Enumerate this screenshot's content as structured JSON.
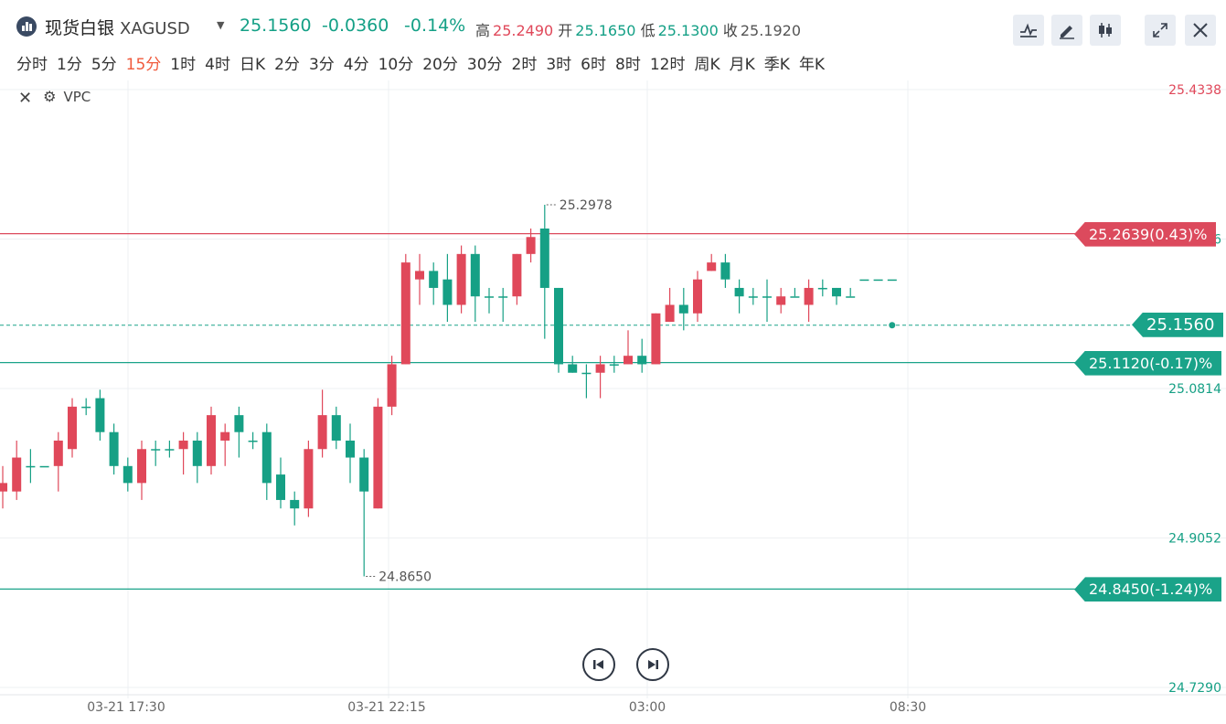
{
  "header": {
    "name": "现货白银",
    "symbol": "XAGUSD",
    "price": "25.1560",
    "change": "-0.0360",
    "change_pct": "-0.14%",
    "high_label": "高",
    "high": "25.2490",
    "open_label": "开",
    "open": "25.1650",
    "low_label": "低",
    "low": "25.1300",
    "close_label": "收",
    "close": "25.1920",
    "colors": {
      "up": "#e0485a",
      "down": "#16a085"
    }
  },
  "toolbar": {
    "icons": [
      "line-chart-icon",
      "pen-icon",
      "candlestick-icon",
      "expand-icon",
      "close-icon"
    ]
  },
  "periods": [
    "分时",
    "1分",
    "5分",
    "15分",
    "1时",
    "4时",
    "日K",
    "2分",
    "3分",
    "4分",
    "10分",
    "20分",
    "30分",
    "2时",
    "3时",
    "6时",
    "8时",
    "12时",
    "周K",
    "月K",
    "季K",
    "年K"
  ],
  "active_period": "15分",
  "indicator": {
    "name": "VPC"
  },
  "chart_data": {
    "type": "candlestick",
    "y_ticks": [
      "25.4338",
      "25.2576",
      "25.0814",
      "24.9052",
      "24.7290"
    ],
    "ylim": [
      24.729,
      25.4338
    ],
    "x_ticks": [
      "03-21 17:30",
      "03-21 22:15",
      "03:00",
      "08:30"
    ],
    "annotations": {
      "max": "25.2978",
      "min": "24.8650"
    },
    "price_lines": [
      {
        "label": "25.2639(0.43)%",
        "value": 25.2639,
        "color": "#dc4a5d"
      },
      {
        "label": "25.1120(-0.17)%",
        "value": 25.112,
        "color": "#1aa389"
      },
      {
        "label": "24.8450(-1.24)%",
        "value": 24.845,
        "color": "#1aa389"
      }
    ],
    "current": {
      "label": "25.1560",
      "value": 25.156
    },
    "candles": [
      [
        24.96,
        24.97,
        24.94,
        24.99
      ],
      [
        24.96,
        25.0,
        24.95,
        25.02
      ],
      [
        24.99,
        24.99,
        24.97,
        25.01
      ],
      [
        24.99,
        24.99,
        24.99,
        24.99
      ],
      [
        24.99,
        25.02,
        24.96,
        25.03
      ],
      [
        25.01,
        25.06,
        25.0,
        25.07
      ],
      [
        25.06,
        25.06,
        25.05,
        25.07
      ],
      [
        25.07,
        25.03,
        25.02,
        25.08
      ],
      [
        25.03,
        24.99,
        24.98,
        25.04
      ],
      [
        24.99,
        24.97,
        24.96,
        25.0
      ],
      [
        24.97,
        25.01,
        24.95,
        25.02
      ],
      [
        25.01,
        25.01,
        24.99,
        25.02
      ],
      [
        25.01,
        25.01,
        25.0,
        25.02
      ],
      [
        25.01,
        25.02,
        24.98,
        25.03
      ],
      [
        25.02,
        24.99,
        24.97,
        25.03
      ],
      [
        24.99,
        25.05,
        24.98,
        25.06
      ],
      [
        25.02,
        25.03,
        24.99,
        25.04
      ],
      [
        25.05,
        25.03,
        25.0,
        25.06
      ],
      [
        25.02,
        25.02,
        25.01,
        25.03
      ],
      [
        25.03,
        24.97,
        24.95,
        25.04
      ],
      [
        24.98,
        24.95,
        24.94,
        25.0
      ],
      [
        24.95,
        24.94,
        24.92,
        24.96
      ],
      [
        24.94,
        25.01,
        24.93,
        25.02
      ],
      [
        25.01,
        25.05,
        25.0,
        25.08
      ],
      [
        25.05,
        25.02,
        25.01,
        25.06
      ],
      [
        25.02,
        25.0,
        24.97,
        25.04
      ],
      [
        25.0,
        24.96,
        24.86,
        25.01
      ],
      [
        24.94,
        25.06,
        24.94,
        25.07
      ],
      [
        25.06,
        25.11,
        25.05,
        25.12
      ],
      [
        25.11,
        25.23,
        25.11,
        25.24
      ],
      [
        25.21,
        25.22,
        25.18,
        25.24
      ],
      [
        25.22,
        25.2,
        25.18,
        25.23
      ],
      [
        25.21,
        25.18,
        25.16,
        25.24
      ],
      [
        25.18,
        25.24,
        25.17,
        25.25
      ],
      [
        25.24,
        25.19,
        25.16,
        25.25
      ],
      [
        25.19,
        25.19,
        25.17,
        25.2
      ],
      [
        25.19,
        25.19,
        25.16,
        25.2
      ],
      [
        25.19,
        25.24,
        25.18,
        25.24
      ],
      [
        25.24,
        25.26,
        25.23,
        25.27
      ],
      [
        25.27,
        25.2,
        25.14,
        25.298
      ],
      [
        25.2,
        25.11,
        25.1,
        25.2
      ],
      [
        25.11,
        25.1,
        25.1,
        25.12
      ],
      [
        25.1,
        25.1,
        25.07,
        25.11
      ],
      [
        25.1,
        25.11,
        25.07,
        25.12
      ],
      [
        25.11,
        25.11,
        25.1,
        25.12
      ],
      [
        25.11,
        25.12,
        25.11,
        25.15
      ],
      [
        25.12,
        25.11,
        25.1,
        25.14
      ],
      [
        25.11,
        25.17,
        25.11,
        25.17
      ],
      [
        25.16,
        25.18,
        25.16,
        25.2
      ],
      [
        25.18,
        25.17,
        25.15,
        25.2
      ],
      [
        25.17,
        25.21,
        25.16,
        25.22
      ],
      [
        25.22,
        25.23,
        25.22,
        25.24
      ],
      [
        25.23,
        25.21,
        25.2,
        25.24
      ],
      [
        25.2,
        25.19,
        25.17,
        25.21
      ],
      [
        25.19,
        25.19,
        25.18,
        25.2
      ],
      [
        25.19,
        25.19,
        25.16,
        25.21
      ],
      [
        25.18,
        25.19,
        25.17,
        25.2
      ],
      [
        25.19,
        25.19,
        25.19,
        25.2
      ],
      [
        25.18,
        25.2,
        25.16,
        25.21
      ],
      [
        25.2,
        25.2,
        25.19,
        25.21
      ],
      [
        25.2,
        25.19,
        25.18,
        25.2
      ],
      [
        25.19,
        25.19,
        25.19,
        25.2
      ],
      [
        25.21,
        25.21,
        25.21,
        25.21
      ],
      [
        25.21,
        25.21,
        25.21,
        25.21
      ],
      [
        25.21,
        25.21,
        25.21,
        25.21
      ]
    ]
  },
  "nav": {
    "prev": "prev-button",
    "next": "next-button"
  }
}
